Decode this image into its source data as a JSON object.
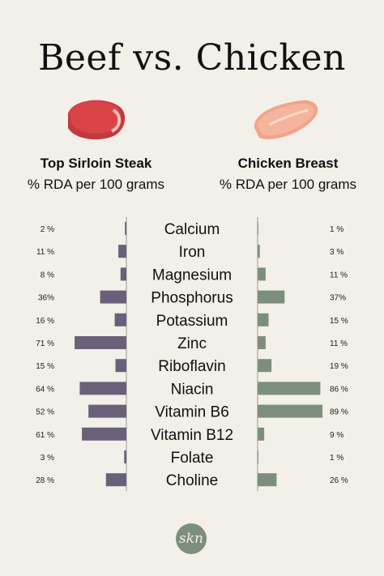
{
  "title": "Beef vs. Chicken",
  "left_column": {
    "name": "Top Sirloin Steak",
    "subtitle": "% RDA per 100 grams"
  },
  "right_column": {
    "name": "Chicken Breast",
    "subtitle": "% RDA per 100 grams"
  },
  "colors": {
    "beef_bar": "#6a6079",
    "chicken_bar": "#7c8f7c",
    "beef_icon": "#d94448",
    "chicken_icon": "#f5b59c",
    "background": "#f3efe9"
  },
  "logo_text": "skn",
  "chart_data": {
    "type": "bar",
    "orientation": "horizontal-back-to-back",
    "categories": [
      "Calcium",
      "Iron",
      "Magnesium",
      "Phosphorus",
      "Potassium",
      "Zinc",
      "Riboflavin",
      "Niacin",
      "Vitamin B6",
      "Vitamin B12",
      "Folate",
      "Choline"
    ],
    "series": [
      {
        "name": "Top Sirloin Steak",
        "values": [
          2,
          11,
          8,
          36,
          16,
          71,
          15,
          64,
          52,
          61,
          3,
          28
        ],
        "labels": [
          "2 %",
          "11 %",
          "8 %",
          "36%",
          "16 %",
          "71 %",
          "15 %",
          "64 %",
          "52 %",
          "61 %",
          "3 %",
          "28 %"
        ]
      },
      {
        "name": "Chicken Breast",
        "values": [
          1,
          3,
          11,
          37,
          15,
          11,
          19,
          86,
          89,
          9,
          1,
          26
        ],
        "labels": [
          "1 %",
          "3 %",
          "11 %",
          "37%",
          "15 %",
          "11 %",
          "19 %",
          "86 %",
          "89 %",
          "9 %",
          "1 %",
          "26 %"
        ]
      }
    ],
    "xlim": [
      0,
      100
    ]
  }
}
